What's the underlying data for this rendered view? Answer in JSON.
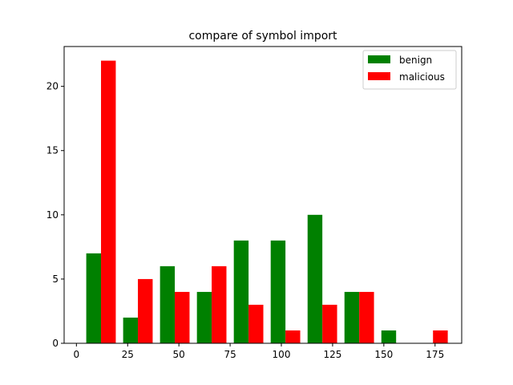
{
  "chart_data": {
    "type": "bar",
    "title": "compare of symbol import",
    "xlabel": "",
    "ylabel": "",
    "xlim": [
      -6,
      188
    ],
    "ylim": [
      0,
      23.1
    ],
    "x_ticks": [
      0,
      25,
      50,
      75,
      100,
      125,
      150,
      175
    ],
    "y_ticks": [
      0,
      5,
      10,
      15,
      20
    ],
    "bin_edges": [
      3,
      21,
      39,
      57,
      75,
      93,
      111,
      129,
      147,
      165,
      183
    ],
    "grid": false,
    "legend_position": "top-right",
    "series": [
      {
        "name": "benign",
        "color": "#008000",
        "values": [
          7,
          2,
          6,
          4,
          8,
          8,
          10,
          4,
          1,
          0
        ]
      },
      {
        "name": "malicious",
        "color": "#ff0000",
        "values": [
          22,
          5,
          4,
          6,
          3,
          1,
          3,
          4,
          0,
          1
        ]
      }
    ]
  }
}
